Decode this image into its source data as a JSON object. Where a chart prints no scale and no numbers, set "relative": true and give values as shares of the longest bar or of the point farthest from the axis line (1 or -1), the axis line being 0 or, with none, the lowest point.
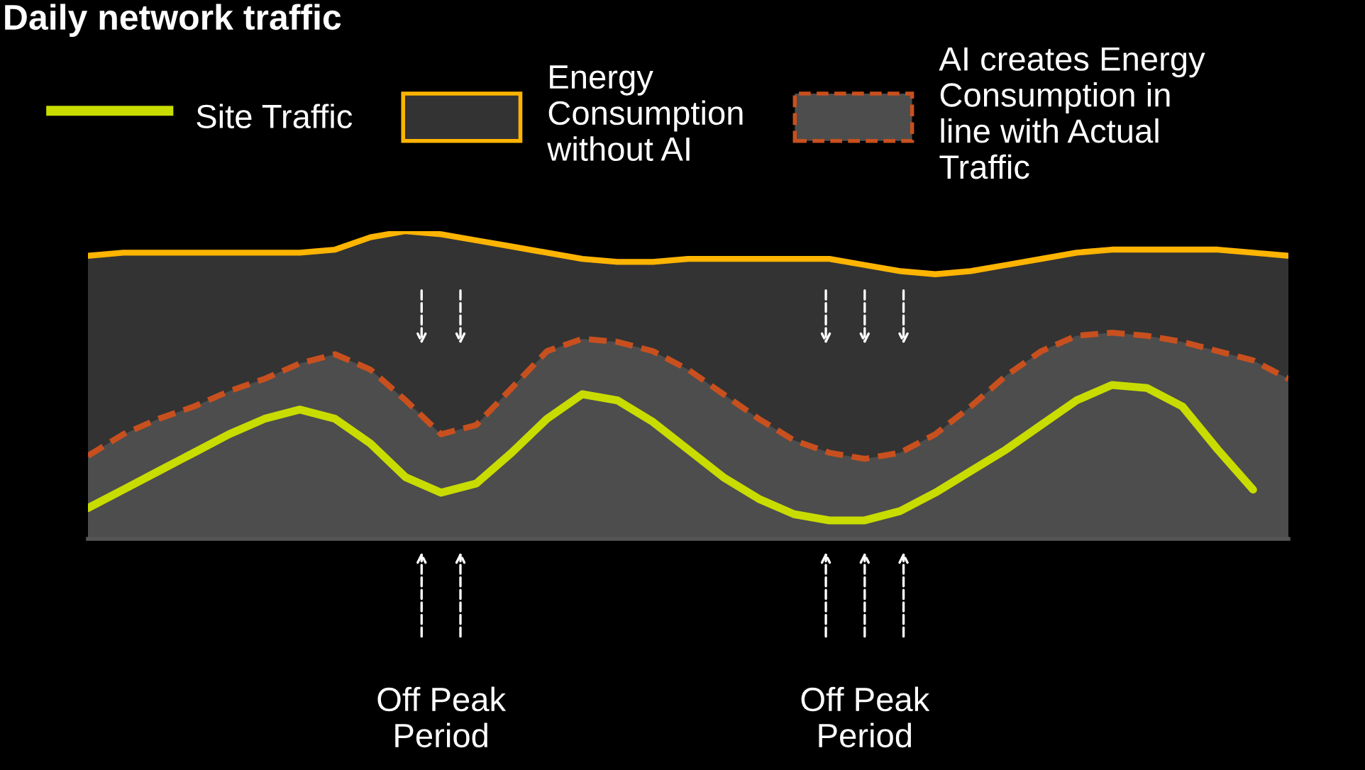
{
  "chart_data": {
    "type": "line",
    "title": "Daily network traffic",
    "relative": true,
    "legend": "top",
    "grid": false,
    "categories": [
      null,
      null,
      null,
      null,
      null,
      null,
      null,
      null,
      null,
      null,
      null,
      null,
      null,
      null,
      null,
      null,
      null,
      null,
      null,
      null,
      null,
      null,
      null,
      null,
      null,
      null,
      null,
      null,
      null,
      null,
      null,
      null,
      null,
      null,
      null
    ],
    "series": [
      {
        "name": "Energy\nConsumption\nwithout AI",
        "color": "#ffb400",
        "line_style": "solid",
        "values": [
          0.92,
          0.93,
          0.93,
          0.93,
          0.93,
          0.93,
          0.93,
          0.94,
          0.98,
          1.0,
          0.99,
          0.97,
          0.95,
          0.93,
          0.91,
          0.9,
          0.9,
          0.91,
          0.91,
          0.91,
          0.91,
          0.91,
          0.89,
          0.87,
          0.86,
          0.87,
          0.89,
          0.91,
          0.93,
          0.94,
          0.94,
          0.94,
          0.94,
          0.93,
          0.92
        ]
      },
      {
        "name": "AI creates Energy\nConsumption in\nline with Actual\nTraffic",
        "type": "area",
        "color": "#c8501e",
        "line_style": "dashed",
        "values": [
          0.27,
          0.34,
          0.39,
          0.43,
          0.48,
          0.52,
          0.57,
          0.6,
          0.55,
          0.45,
          0.34,
          0.37,
          0.49,
          0.61,
          0.65,
          0.64,
          0.61,
          0.55,
          0.47,
          0.39,
          0.32,
          0.28,
          0.26,
          0.28,
          0.34,
          0.43,
          0.53,
          0.61,
          0.66,
          0.67,
          0.66,
          0.64,
          0.61,
          0.58,
          0.52
        ]
      },
      {
        "name": "Site Traffic",
        "color": "#c8dc00",
        "line_style": "solid",
        "values": [
          0.1,
          0.16,
          0.22,
          0.28,
          0.34,
          0.39,
          0.42,
          0.39,
          0.31,
          0.2,
          0.15,
          0.18,
          0.28,
          0.39,
          0.47,
          0.45,
          0.38,
          0.29,
          0.2,
          0.13,
          0.08,
          0.06,
          0.06,
          0.09,
          0.15,
          0.22,
          0.29,
          0.37,
          0.45,
          0.5,
          0.49,
          0.43,
          0.29,
          0.16,
          null
        ]
      }
    ],
    "annotations": [
      "Off Peak\nPeriod",
      "Off Peak\nPeriod"
    ]
  }
}
